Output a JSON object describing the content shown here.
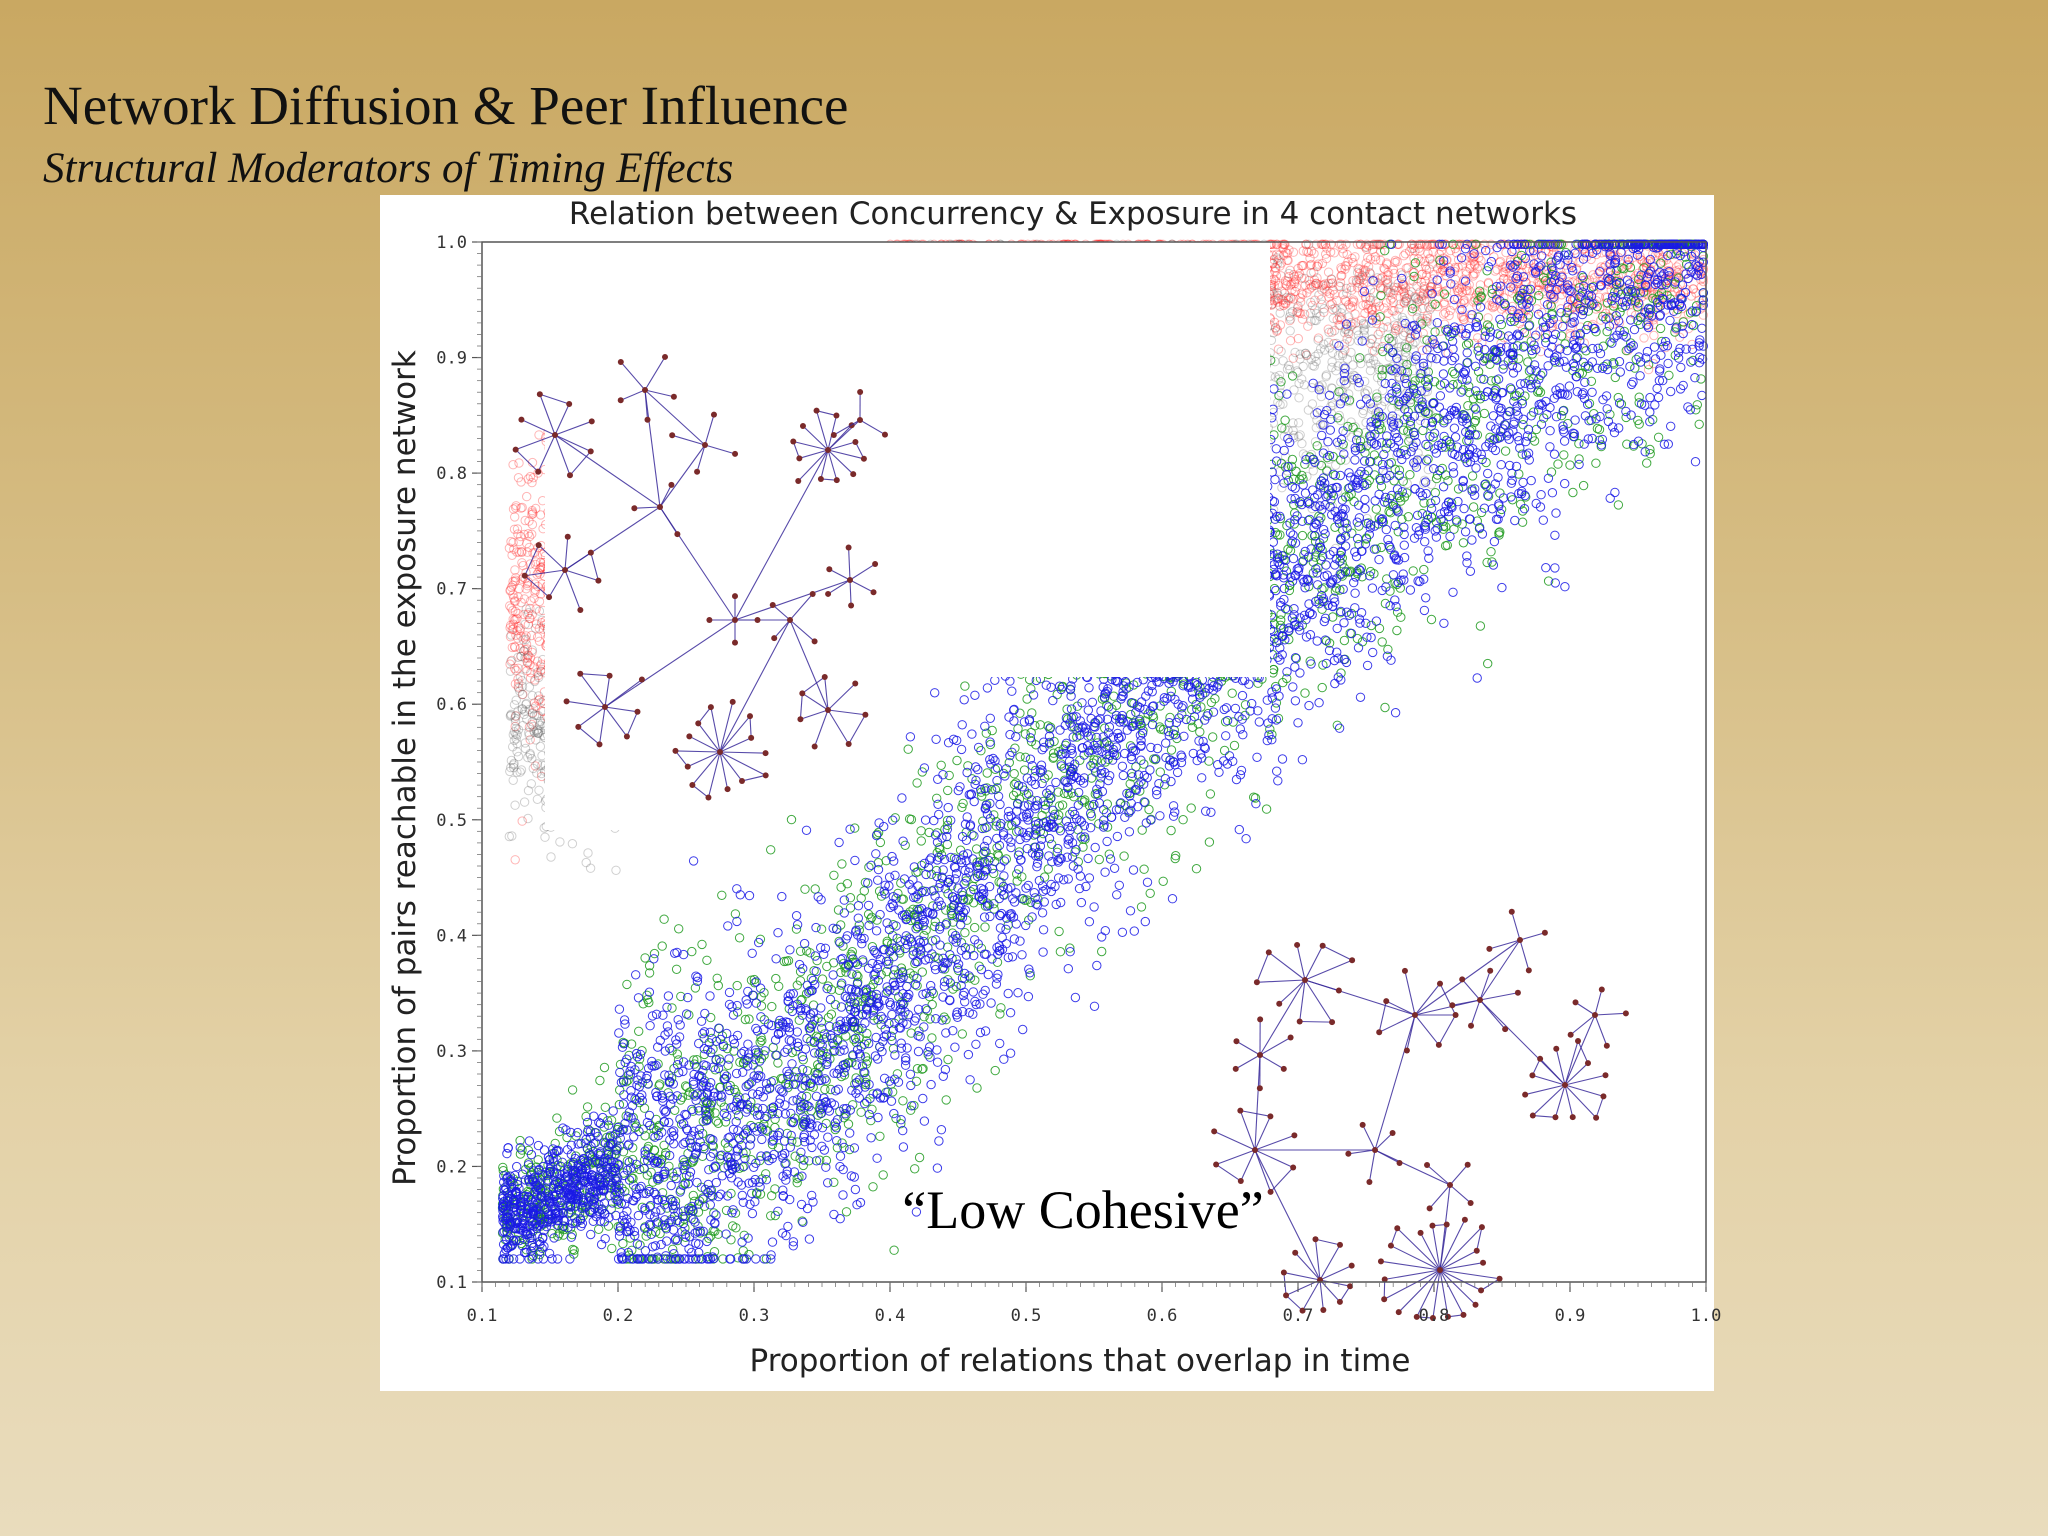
{
  "slide": {
    "title": "Network Diffusion & Peer Influence",
    "subtitle": "Structural Moderators of Timing Effects"
  },
  "chart_data": {
    "type": "scatter",
    "title": "Relation between Concurrency & Exposure in 4 contact networks",
    "xlabel": "Proportion of relations that overlap in time",
    "ylabel": "Proportion of pairs reachable in the exposure network",
    "xlim": [
      0.1,
      1.0
    ],
    "ylim": [
      0.1,
      1.0
    ],
    "x_ticks": [
      "0.1",
      "0.2",
      "0.3",
      "0.4",
      "0.5",
      "0.6",
      "0.7",
      "0.8",
      "0.9",
      "1.0"
    ],
    "y_ticks": [
      "0.1",
      "0.2",
      "0.3",
      "0.4",
      "0.5",
      "0.6",
      "0.7",
      "0.8",
      "0.9",
      "1.0"
    ],
    "grid": false,
    "marker": "open-circle",
    "annotation": "“Low Cohesive”",
    "colors": {
      "red": "#ff2b2b",
      "black": "#555555",
      "green": "#1f9a1f",
      "blue": "#1a1ae6",
      "network_edge": "#3a2a9a",
      "network_node": "#7a2a2a"
    },
    "series": [
      {
        "color": "red",
        "point_count": 2600,
        "clusters": [
          {
            "x_range": [
              0.4,
              1.0
            ],
            "y_center": 0.965,
            "y_spread": 0.025,
            "weight": 0.8
          },
          {
            "x_range": [
              0.12,
              0.19
            ],
            "y_center": 0.69,
            "y_spread": 0.06,
            "weight": 0.2
          }
        ]
      },
      {
        "color": "black",
        "point_count": 1700,
        "clusters": [
          {
            "x_range": [
              0.4,
              0.8
            ],
            "y_center": 0.89,
            "y_spread": 0.05,
            "weight": 0.75
          },
          {
            "x_range": [
              0.12,
              0.2
            ],
            "y_center": 0.58,
            "y_spread": 0.05,
            "weight": 0.25
          }
        ]
      },
      {
        "color": "green",
        "point_count": 2200,
        "trend": [
          [
            0.12,
            0.16
          ],
          [
            0.3,
            0.25
          ],
          [
            0.42,
            0.4
          ],
          [
            0.55,
            0.58
          ],
          [
            0.7,
            0.72
          ],
          [
            0.85,
            0.88
          ],
          [
            0.99,
            0.99
          ]
        ],
        "y_spread": 0.075
      },
      {
        "color": "blue",
        "point_count": 4000,
        "trend": [
          [
            0.12,
            0.16
          ],
          [
            0.3,
            0.25
          ],
          [
            0.42,
            0.38
          ],
          [
            0.55,
            0.56
          ],
          [
            0.7,
            0.72
          ],
          [
            0.85,
            0.88
          ],
          [
            0.99,
            0.99
          ]
        ],
        "y_spread": 0.07
      }
    ]
  }
}
